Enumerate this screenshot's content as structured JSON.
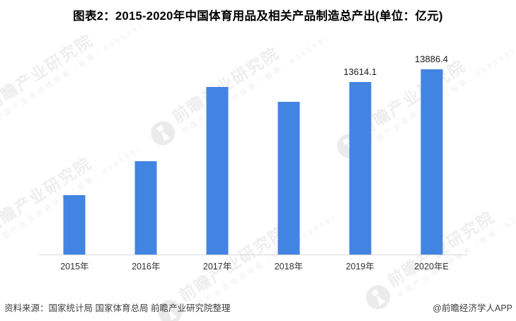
{
  "title": "图表2：2015-2020年中国体育用品及相关产品制造总产出(单位：亿元)",
  "chart_data": {
    "type": "bar",
    "categories": [
      "2015年",
      "2016年",
      "2017年",
      "2018年",
      "2019年",
      "2020年E"
    ],
    "values": [
      11240,
      11960,
      13510,
      13200,
      13614.1,
      13886.4
    ],
    "data_labels": [
      "",
      "",
      "",
      "",
      "13614.1",
      "13886.4"
    ],
    "title": "图表2：2015-2020年中国体育用品及相关产品制造总产出(单位：亿元)",
    "xlabel": "",
    "ylabel": "",
    "unit": "亿元",
    "ylim": [
      10000,
      14300
    ],
    "grid": false,
    "legend": false,
    "bar_color": "#4284e2",
    "axis_color": "#d8d8d8",
    "label_color": "#1a1a1a"
  },
  "watermark": {
    "logo": "qianzhan-circle-logo",
    "brand": "前瞻产业研究院",
    "tagline": "中国产业咨询领导者（股票：839599）"
  },
  "footer": {
    "source": "资料来源：国家统计局 国家体育总局 前瞻产业研究院整理",
    "credit": "@前瞻经济学人APP"
  }
}
